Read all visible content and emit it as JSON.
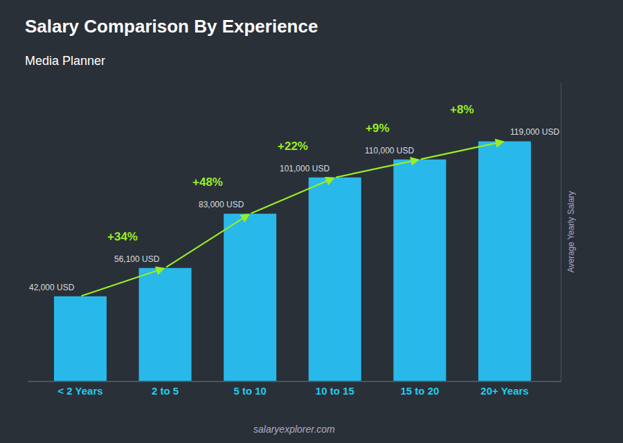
{
  "chart_data": {
    "type": "bar",
    "title": "Salary Comparison By Experience",
    "subtitle": "Media Planner",
    "y_label": "Average Yearly Salary",
    "categories": [
      "< 2 Years",
      "2 to 5",
      "5 to 10",
      "10 to 15",
      "15 to 20",
      "20+ Years"
    ],
    "values": [
      42000,
      56100,
      83000,
      101000,
      110000,
      119000
    ],
    "value_labels": [
      "42,000 USD",
      "56,100 USD",
      "83,000 USD",
      "101,000 USD",
      "110,000 USD",
      "119,000 USD"
    ],
    "data_labels": true,
    "color": "#29b8ea",
    "ylim": [
      0,
      148000
    ],
    "grid": false,
    "tick_labels": "x",
    "annotations": [
      {
        "text": "+34%",
        "from": "< 2 Years",
        "to": "2 to 5",
        "color": "#99ee22"
      },
      {
        "text": "+48%",
        "from": "2 to 5",
        "to": "5 to 10",
        "color": "#99ee22"
      },
      {
        "text": "+22%",
        "from": "5 to 10",
        "to": "10 to 15",
        "color": "#99ee22"
      },
      {
        "text": "+9%",
        "from": "10 to 15",
        "to": "15 to 20",
        "color": "#99ee22"
      },
      {
        "text": "+8%",
        "from": "15 to 20",
        "to": "20+ Years",
        "color": "#99ee22"
      },
      {
        "text": "salaryexplorer.com"
      }
    ]
  }
}
